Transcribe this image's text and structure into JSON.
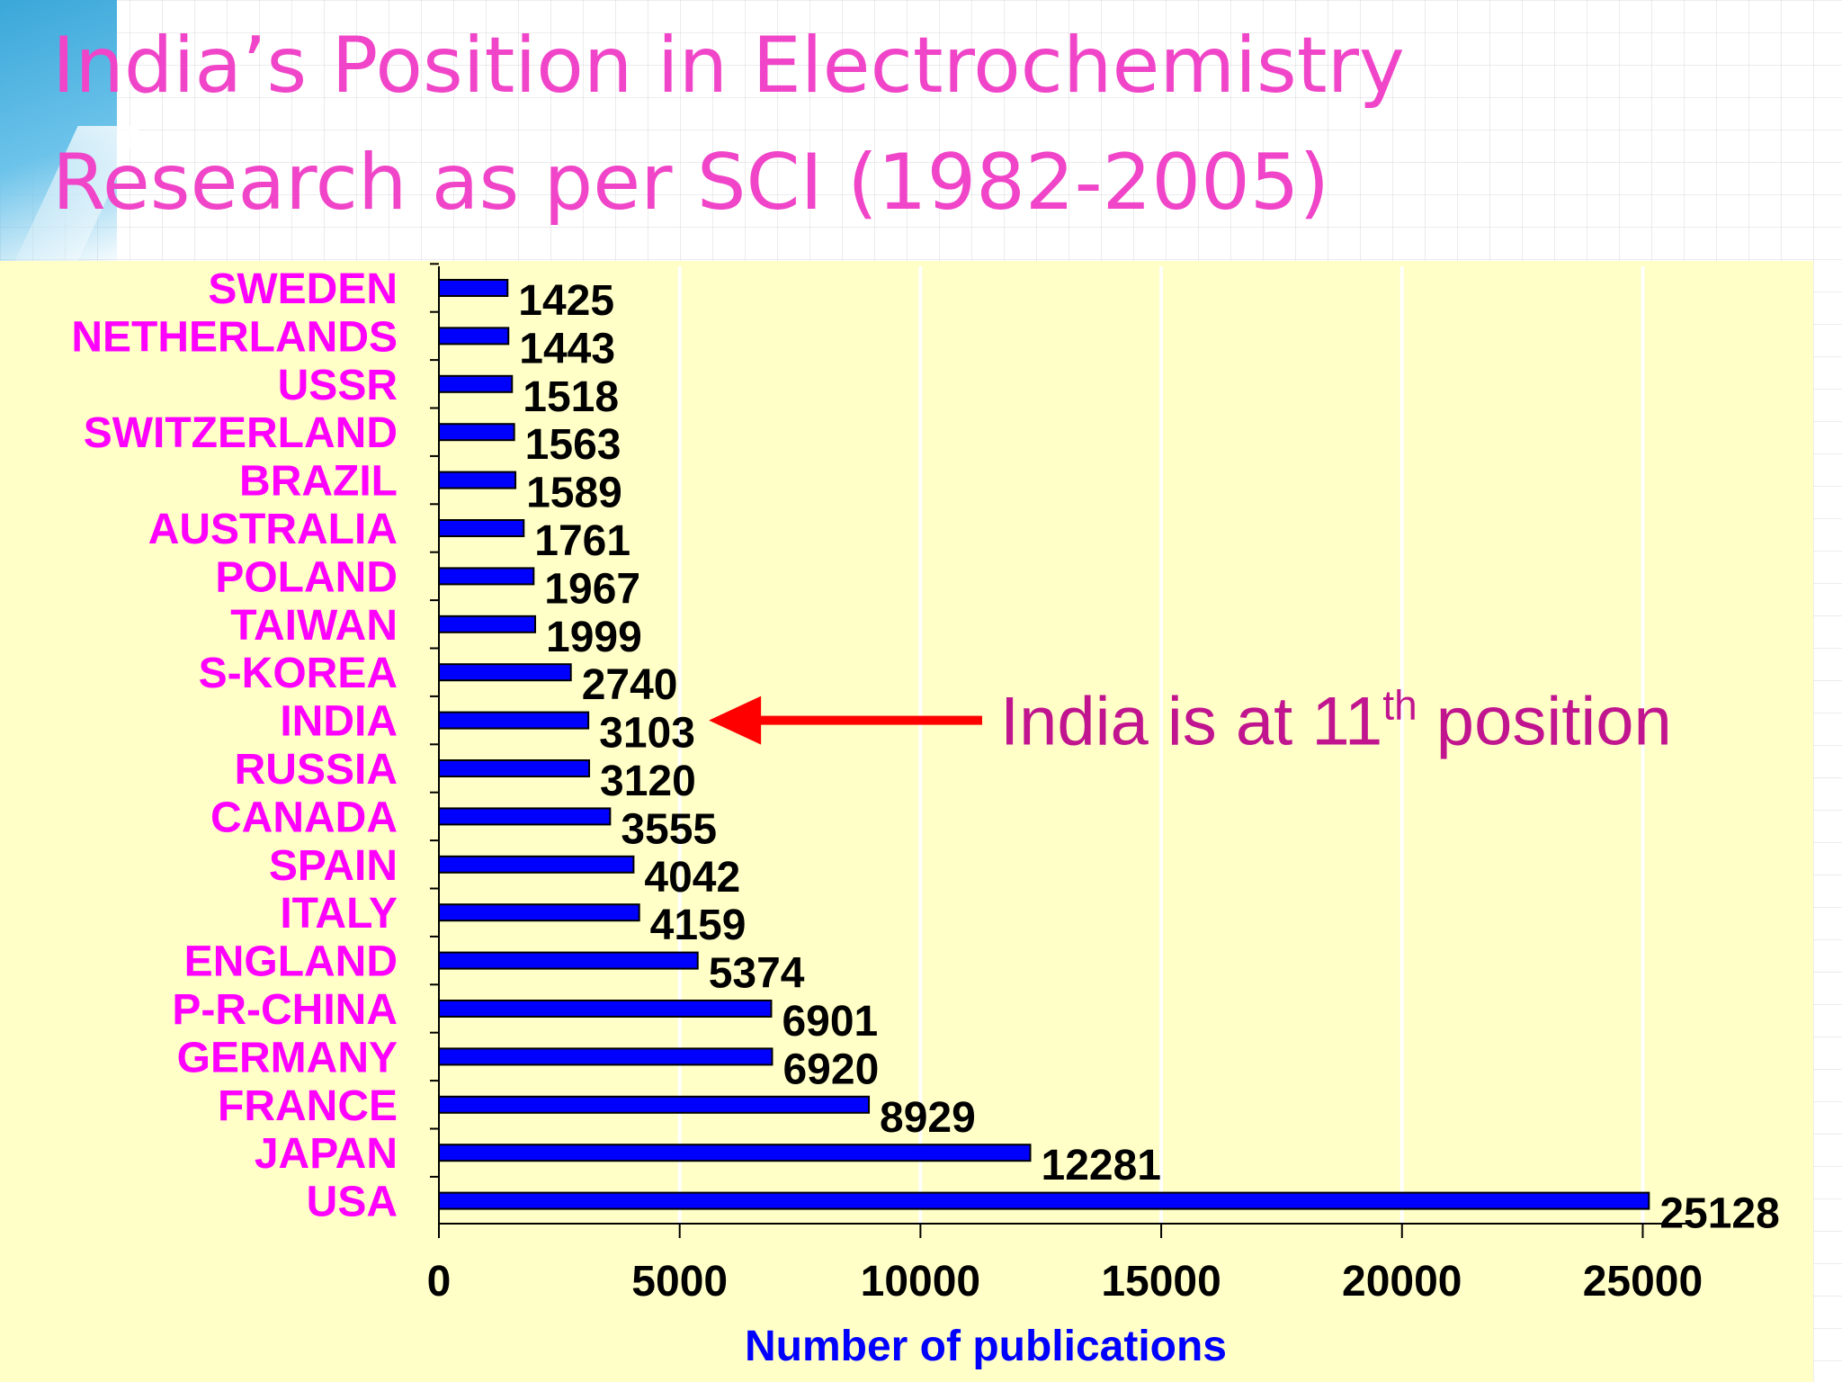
{
  "slide": {
    "title_line1": "India’s Position in Electrochemistry",
    "title_line2": "Research as per SCI (1982-2005)"
  },
  "annotation": {
    "text_before": "India is at 11",
    "superscript": "th",
    "text_after": " position",
    "target_category": "INDIA",
    "color": "#c0158f",
    "arrow_color": "#ff0000"
  },
  "colors": {
    "bar": "#0000ff",
    "category_label": "#ff00ff",
    "axis_title": "#0000ff",
    "plot_background": "#ffffc7"
  },
  "chart_data": {
    "type": "bar",
    "orientation": "horizontal",
    "categories": [
      "SWEDEN",
      "NETHERLANDS",
      "USSR",
      "SWITZERLAND",
      "BRAZIL",
      "AUSTRALIA",
      "POLAND",
      "TAIWAN",
      "S-KOREA",
      "INDIA",
      "RUSSIA",
      "CANADA",
      "SPAIN",
      "ITALY",
      "ENGLAND",
      "P-R-CHINA",
      "GERMANY",
      "FRANCE",
      "JAPAN",
      "USA"
    ],
    "values": [
      1425,
      1443,
      1518,
      1563,
      1589,
      1761,
      1967,
      1999,
      2740,
      3103,
      3120,
      3555,
      4042,
      4159,
      5374,
      6901,
      6920,
      8929,
      12281,
      25128
    ],
    "data_labels": [
      "1425",
      "1443",
      "1518",
      "1563",
      "1589",
      "1761",
      "1967",
      "1999",
      "2740",
      "3103",
      "3120",
      "3555",
      "4042",
      "4159",
      "5374",
      "6901",
      "6920",
      "8929",
      "12281",
      "25128"
    ],
    "xlabel": "Number of publications",
    "ylabel": "",
    "xlim": [
      0,
      26000
    ],
    "xticks": [
      0,
      5000,
      10000,
      15000,
      20000,
      25000
    ],
    "xtick_labels": [
      "0",
      "5000",
      "10000",
      "15000",
      "20000",
      "25000"
    ],
    "grid": "vertical",
    "legend": "none"
  }
}
